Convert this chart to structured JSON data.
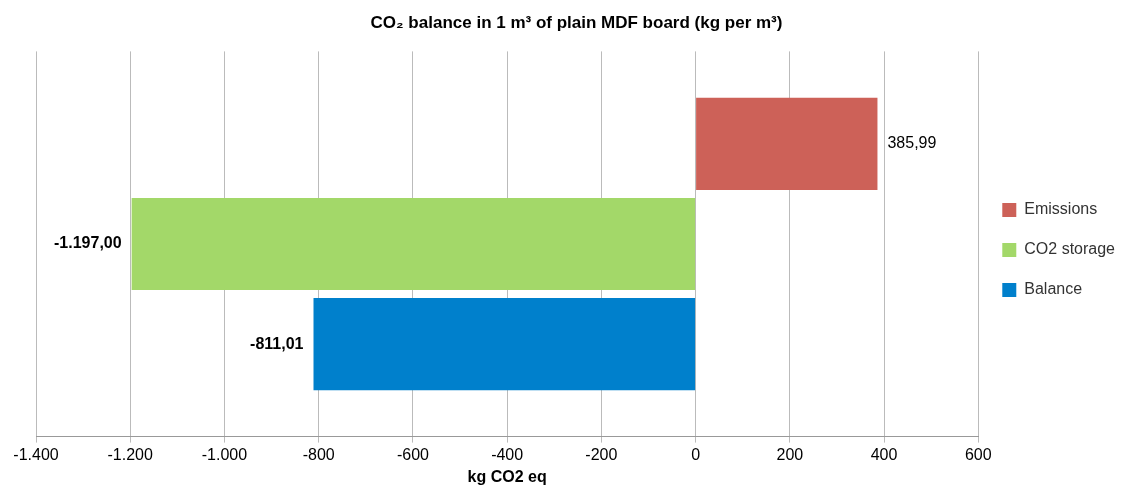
{
  "chart_data": {
    "type": "bar",
    "orientation": "horizontal",
    "title": "CO₂ balance in 1 m³ of plain MDF board (kg per m³)",
    "xlabel": "kg CO2 eq",
    "categories": [
      null
    ],
    "series": [
      {
        "name": "Emissions",
        "color": "#cd6158",
        "values": [
          385.99
        ],
        "value_labels": [
          "385,99"
        ]
      },
      {
        "name": "CO2 storage",
        "color": "#a3d869",
        "values": [
          -1197.0
        ],
        "value_labels": [
          "-1.197,00"
        ]
      },
      {
        "name": "Balance",
        "color": "#0080cc",
        "values": [
          -811.01
        ],
        "value_labels": [
          "-811,01"
        ]
      }
    ],
    "xlim": [
      -1400,
      600
    ],
    "xticks": [
      {
        "value": -1400,
        "label": "-1.400"
      },
      {
        "value": -1200,
        "label": "-1.200"
      },
      {
        "value": -1000,
        "label": "-1.000"
      },
      -800,
      -600,
      -400,
      -200,
      0,
      200,
      400,
      600
    ],
    "grid": "x",
    "legend": "right"
  }
}
